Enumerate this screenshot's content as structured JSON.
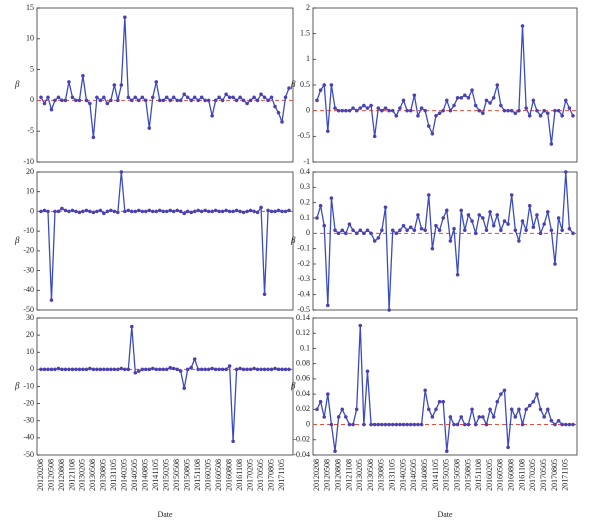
{
  "chart_data": [
    {
      "type": "line",
      "ylabel": "β",
      "color": "#3b4cc0",
      "ylim": [
        -10,
        15
      ],
      "yticks": [
        -10,
        -5,
        0,
        5,
        10,
        15
      ],
      "values": [
        0.5,
        -0.5,
        0.5,
        -1.5,
        0,
        0.5,
        0,
        0,
        3,
        0.5,
        0,
        0,
        4,
        0,
        -0.5,
        -6,
        0.5,
        0,
        0.5,
        -0.5,
        0,
        2.5,
        0,
        2.5,
        13.5,
        0.5,
        0,
        0.5,
        0,
        0.5,
        0,
        -4.5,
        0.5,
        3,
        0,
        0,
        0.5,
        0,
        0.5,
        0,
        0,
        1,
        0.5,
        0,
        0.5,
        0,
        0.5,
        0,
        0,
        -2.5,
        0,
        0.5,
        0,
        1,
        0.5,
        0.5,
        0,
        0.5,
        0,
        -0.5,
        0,
        0.5,
        0,
        1,
        0.5,
        0,
        0.5,
        -1,
        -2,
        -3.5,
        0.5,
        2
      ]
    },
    {
      "type": "line",
      "ylabel": "β",
      "color": "#3b4cc0",
      "ylim": [
        -1,
        2
      ],
      "yticks": [
        -1,
        -0.5,
        0,
        0.5,
        1,
        1.5,
        2
      ],
      "values": [
        0.2,
        0.4,
        0.5,
        -0.4,
        0.5,
        0.05,
        0,
        0,
        0,
        0,
        0.05,
        0,
        0.05,
        0.1,
        0.05,
        0.1,
        -0.5,
        0.05,
        0,
        0.05,
        0,
        0,
        -0.1,
        0.05,
        0.2,
        0,
        0,
        0.3,
        -0.1,
        0.05,
        0,
        -0.3,
        -0.45,
        -0.1,
        -0.05,
        0,
        0.2,
        0,
        0.1,
        0.25,
        0.25,
        0.3,
        0.25,
        0.4,
        0.1,
        0,
        -0.05,
        0.2,
        0.15,
        0.25,
        0.5,
        0.1,
        0,
        0,
        0,
        -0.05,
        0,
        1.65,
        0.05,
        -0.1,
        0.2,
        0,
        -0.1,
        0,
        -0.05,
        -0.65,
        0,
        0,
        -0.1,
        0.2,
        0.05,
        -0.1
      ]
    },
    {
      "type": "line",
      "ylabel": "β",
      "color": "#3b4cc0",
      "ylim": [
        -50,
        20
      ],
      "yticks": [
        -50,
        -40,
        -30,
        -20,
        -10,
        0,
        10,
        20
      ],
      "values": [
        0,
        0.5,
        0,
        -45,
        0,
        0,
        1.5,
        0.5,
        0,
        0.5,
        0,
        -0.5,
        0,
        0.5,
        0,
        -0.5,
        0,
        0.5,
        -1,
        0,
        0.5,
        0,
        -0.5,
        20,
        0,
        0.5,
        0,
        0,
        0.5,
        0,
        0,
        0.5,
        0,
        0,
        0.5,
        0,
        0,
        0.5,
        0,
        0.5,
        0,
        -1,
        0,
        -0.5,
        0,
        0.5,
        0,
        0.5,
        0,
        0,
        0.5,
        0,
        0,
        0.5,
        0,
        0,
        0.5,
        0,
        -0.5,
        0,
        0.5,
        0,
        -0.5,
        2,
        -42,
        0.5,
        0,
        0,
        0.5,
        0,
        0,
        0.5
      ]
    },
    {
      "type": "line",
      "ylabel": "β",
      "color": "#3b4cc0",
      "ylim": [
        -0.5,
        0.4
      ],
      "yticks": [
        -0.5,
        -0.4,
        -0.3,
        -0.2,
        -0.1,
        0,
        0.1,
        0.2,
        0.3,
        0.4
      ],
      "values": [
        0.1,
        0.18,
        0.05,
        -0.47,
        0.23,
        0.02,
        0,
        0.02,
        0,
        0.06,
        0.02,
        0,
        0.02,
        0,
        0.02,
        0,
        -0.05,
        -0.03,
        0.02,
        0.17,
        -0.5,
        0.02,
        0,
        0.02,
        0.05,
        0.02,
        0.04,
        0.02,
        0.12,
        0.03,
        0.02,
        0.25,
        -0.1,
        0.05,
        0.02,
        0.1,
        0.15,
        -0.05,
        0.03,
        -0.27,
        0.15,
        0.02,
        0.12,
        0.08,
        0,
        0.12,
        0.1,
        0.02,
        0.14,
        0.05,
        0.12,
        0.02,
        0.08,
        0.06,
        0.25,
        0.02,
        -0.05,
        0.08,
        0.02,
        0.18,
        0.04,
        0.12,
        0,
        0.06,
        0.14,
        0.02,
        -0.2,
        0.1,
        0.02,
        0.4,
        0.03,
        0
      ]
    },
    {
      "type": "line",
      "ylabel": "β",
      "xlabel": "Date",
      "color": "#3b4cc0",
      "ylim": [
        -50,
        30
      ],
      "yticks": [
        -50,
        -40,
        -30,
        -20,
        -10,
        0,
        10,
        20,
        30
      ],
      "categories": [
        "20120208",
        null,
        null,
        "20120508",
        null,
        null,
        "20120808",
        null,
        null,
        "20121108",
        null,
        null,
        "20130205",
        null,
        null,
        "20130508",
        null,
        null,
        "20130805",
        null,
        null,
        "20131105",
        null,
        null,
        "20140205",
        null,
        null,
        "20140505",
        null,
        null,
        "20140805",
        null,
        null,
        "20141105",
        null,
        null,
        "20150205",
        null,
        null,
        "20150508",
        null,
        null,
        "20150805",
        null,
        null,
        "20151108",
        null,
        null,
        "20160205",
        null,
        null,
        "20160508",
        null,
        null,
        "20160808",
        null,
        null,
        "20161108",
        null,
        null,
        "20170205",
        null,
        null,
        "20170505",
        null,
        null,
        "20170805",
        null,
        null,
        "20171105",
        null,
        null
      ],
      "values": [
        0,
        0,
        0,
        0,
        0,
        0.5,
        0,
        0,
        0,
        0,
        0,
        0,
        0,
        0,
        0.5,
        0,
        0,
        0,
        0,
        0,
        0,
        0,
        0,
        0.5,
        0,
        0,
        25,
        -2,
        -1,
        0,
        0,
        0,
        0.5,
        0,
        0,
        0,
        0,
        1,
        0.5,
        0,
        -1,
        -11,
        0,
        1,
        6,
        0,
        0,
        0,
        0,
        0.5,
        0,
        0,
        0,
        0,
        2,
        -42,
        0,
        0.5,
        0,
        0,
        0,
        0.5,
        0,
        0,
        0,
        0,
        0,
        0.5,
        0,
        0,
        0,
        0
      ]
    },
    {
      "type": "line",
      "ylabel": "β",
      "xlabel": "Date",
      "color": "#3b4cc0",
      "ylim": [
        -0.04,
        0.14
      ],
      "yticks": [
        -0.04,
        -0.02,
        0,
        0.02,
        0.04,
        0.06,
        0.08,
        0.1,
        0.12,
        0.14
      ],
      "categories": [
        "20120208",
        null,
        null,
        "20120508",
        null,
        null,
        "20120808",
        null,
        null,
        "20121108",
        null,
        null,
        "20130205",
        null,
        null,
        "20130508",
        null,
        null,
        "20130805",
        null,
        null,
        "20131105",
        null,
        null,
        "20140205",
        null,
        null,
        "20140505",
        null,
        null,
        "20140805",
        null,
        null,
        "20141105",
        null,
        null,
        "20150205",
        null,
        null,
        "20150508",
        null,
        null,
        "20150805",
        null,
        null,
        "20151108",
        null,
        null,
        "20160205",
        null,
        null,
        "20160508",
        null,
        null,
        "20160808",
        null,
        null,
        "20161108",
        null,
        null,
        "20170205",
        null,
        null,
        "20170505",
        null,
        null,
        "20170805",
        null,
        null,
        "20171105",
        null,
        null
      ],
      "values": [
        0.02,
        0.03,
        0.01,
        0.04,
        0,
        -0.035,
        0.01,
        0.02,
        0.01,
        0,
        0,
        0.02,
        0.13,
        0,
        0.07,
        0,
        0,
        0,
        0,
        0,
        0,
        0,
        0,
        0,
        0,
        0,
        0,
        0,
        0,
        0,
        0.045,
        0.02,
        0.01,
        0.02,
        0.03,
        0.03,
        -0.035,
        0.01,
        0,
        0,
        0.01,
        0,
        0,
        0.02,
        0,
        0.01,
        0.01,
        0,
        0.02,
        0.01,
        0.03,
        0.04,
        0.045,
        -0.03,
        0.02,
        0.01,
        0.02,
        0,
        0.02,
        0.025,
        0.03,
        0.04,
        0.02,
        0.01,
        0.02,
        0.005,
        0,
        0.005,
        0,
        0,
        0,
        0
      ]
    }
  ]
}
